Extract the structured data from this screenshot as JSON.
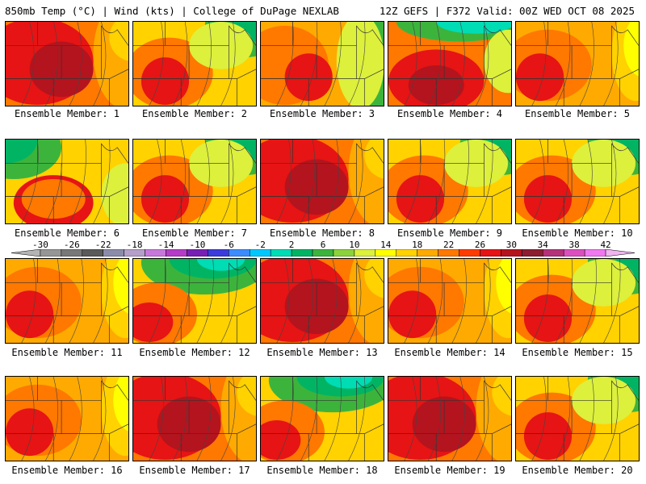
{
  "header": {
    "left": "850mb Temp (°C) | Wind (kts) | College of DuPage NEXLAB",
    "right": "12Z GEFS | F372 Valid: 00Z WED OCT 08 2025"
  },
  "members": [
    {
      "label": "Ensemble Member: 1",
      "style": "hot"
    },
    {
      "label": "Ensemble Member: 2",
      "style": "warm-green-ne"
    },
    {
      "label": "Ensemble Member: 3",
      "style": "warm-green-e"
    },
    {
      "label": "Ensemble Member: 4",
      "style": "hot-cyan-n"
    },
    {
      "label": "Ensemble Member: 5",
      "style": "warm"
    },
    {
      "label": "Ensemble Member: 6",
      "style": "green-nw-hot-sw"
    },
    {
      "label": "Ensemble Member: 7",
      "style": "warm-green-ne"
    },
    {
      "label": "Ensemble Member: 8",
      "style": "hot"
    },
    {
      "label": "Ensemble Member: 9",
      "style": "warm-green-ne"
    },
    {
      "label": "Ensemble Member: 10",
      "style": "warm-green-ne"
    },
    {
      "label": "Ensemble Member: 11",
      "style": "warm"
    },
    {
      "label": "Ensemble Member: 12",
      "style": "cool-n"
    },
    {
      "label": "Ensemble Member: 13",
      "style": "hot"
    },
    {
      "label": "Ensemble Member: 14",
      "style": "warm"
    },
    {
      "label": "Ensemble Member: 15",
      "style": "warm-green-ne"
    },
    {
      "label": "Ensemble Member: 16",
      "style": "warm"
    },
    {
      "label": "Ensemble Member: 17",
      "style": "hot"
    },
    {
      "label": "Ensemble Member: 18",
      "style": "cool-n"
    },
    {
      "label": "Ensemble Member: 19",
      "style": "hot"
    },
    {
      "label": "Ensemble Member: 20",
      "style": "warm-green-ne"
    }
  ],
  "colorbar": {
    "ticks": [
      "-30",
      "-26",
      "-22",
      "-18",
      "-14",
      "-10",
      "-6",
      "-2",
      "2",
      "6",
      "10",
      "14",
      "18",
      "22",
      "26",
      "30",
      "34",
      "38",
      "42"
    ],
    "colors": [
      "#b4b4b4",
      "#969696",
      "#787878",
      "#5a5a5a",
      "#8c8caa",
      "#b4a0c8",
      "#c878dc",
      "#b43cc8",
      "#7820b4",
      "#3c3cdc",
      "#3c8cff",
      "#00c8ff",
      "#00dcb4",
      "#00b464",
      "#3cb43c",
      "#8cd23c",
      "#dcf03c",
      "#ffff00",
      "#ffd200",
      "#ffaa00",
      "#ff7800",
      "#ff3c00",
      "#e61414",
      "#b4141e",
      "#8c1e32",
      "#b4327a",
      "#dc50be",
      "#f078f0",
      "#f0b4f0"
    ]
  }
}
